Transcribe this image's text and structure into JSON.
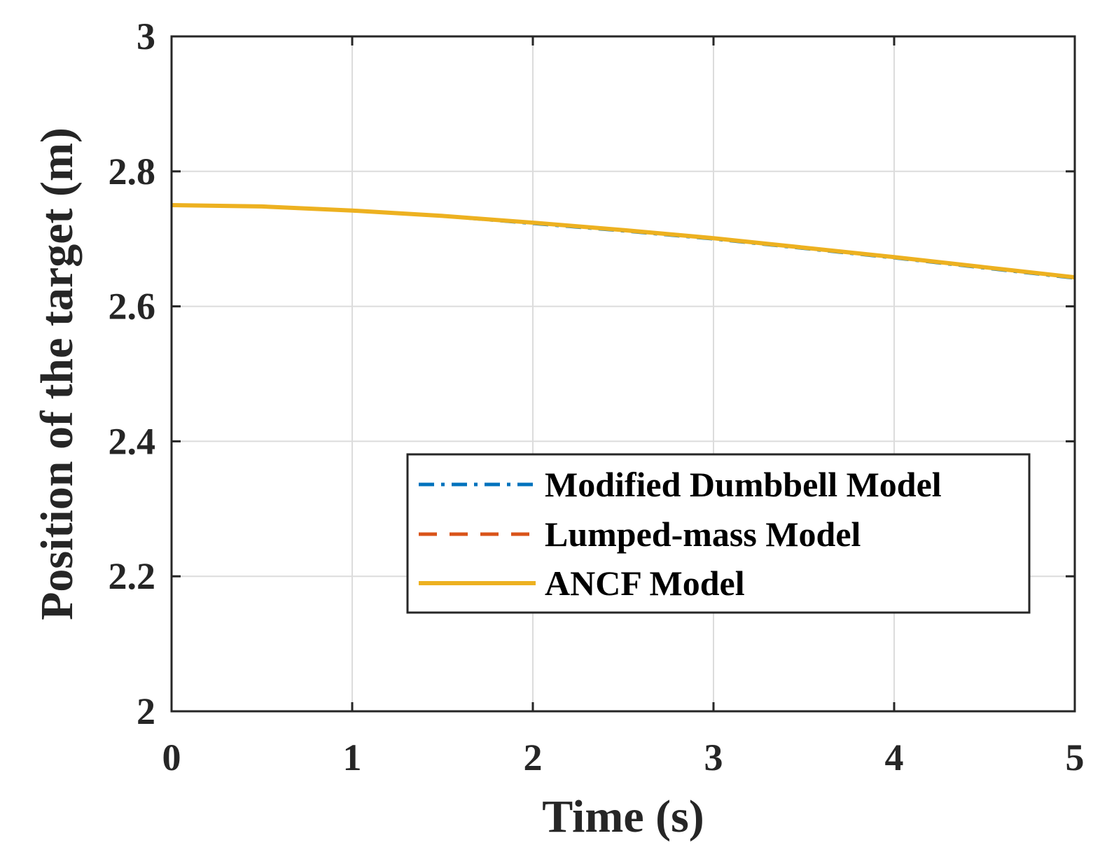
{
  "chart_data": {
    "type": "line",
    "title": "",
    "xlabel": "Time (s)",
    "ylabel": "Position of the target (m)",
    "xlim": [
      0,
      5
    ],
    "ylim": [
      2,
      3
    ],
    "xticks": [
      0,
      1,
      2,
      3,
      4,
      5
    ],
    "yticks": [
      2,
      2.2,
      2.4,
      2.6,
      2.8,
      3
    ],
    "xtick_labels": [
      "0",
      "1",
      "2",
      "3",
      "4",
      "5"
    ],
    "ytick_labels": [
      "2",
      "2.2",
      "2.4",
      "2.6",
      "2.8",
      "3"
    ],
    "grid": true,
    "legend_location": "lower-right",
    "x": [
      0,
      0.5,
      1,
      1.5,
      2,
      2.5,
      3,
      3.5,
      4,
      4.5,
      5
    ],
    "series": [
      {
        "name": "Modified Dumbbell Model",
        "style": "dash-dot",
        "color": "#0072BD",
        "values": [
          2.75,
          2.748,
          2.742,
          2.734,
          2.723,
          2.712,
          2.7,
          2.686,
          2.672,
          2.657,
          2.642
        ]
      },
      {
        "name": "Lumped-mass Model",
        "style": "dashed",
        "color": "#D95319",
        "values": [
          2.75,
          2.748,
          2.742,
          2.734,
          2.724,
          2.713,
          2.701,
          2.687,
          2.673,
          2.658,
          2.643
        ]
      },
      {
        "name": "ANCF Model",
        "style": "solid",
        "color": "#EDB120",
        "values": [
          2.75,
          2.748,
          2.742,
          2.734,
          2.724,
          2.713,
          2.701,
          2.687,
          2.673,
          2.658,
          2.643
        ]
      }
    ]
  }
}
